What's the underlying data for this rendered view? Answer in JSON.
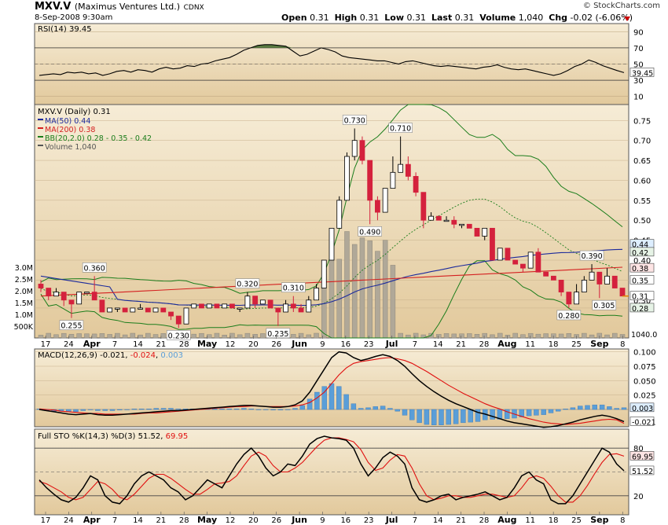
{
  "header": {
    "symbol": "MXV.V",
    "name": "(Maximus Ventures Ltd.)",
    "exchange": "CDNX",
    "datetime": "8-Sep-2008 9:30am",
    "copyright": "© StockCharts.com",
    "quote": {
      "open_label": "Open",
      "open": "0.31",
      "high_label": "High",
      "high": "0.31",
      "low_label": "Low",
      "low": "0.31",
      "last_label": "Last",
      "last": "0.31",
      "volume_label": "Volume",
      "volume": "1,040",
      "chg_label": "Chg",
      "chg": "-0.02 (-6.06%)"
    }
  },
  "colors": {
    "panel_bg": "#eddcb8",
    "up": "#ffffff",
    "down": "#d4213d",
    "ma50": "#1c2a9c",
    "ma200": "#d42020",
    "bb": "#1b7d1b",
    "volume": "#b0a898",
    "macd": "#000000",
    "signal": "#e01010",
    "hist": "#5a9ed8",
    "rsi_fill": "#5a7a40"
  },
  "chart_data": [
    {
      "type": "line",
      "title": "RSI(14) 39.45",
      "series": [
        {
          "name": "RSI(14)",
          "values": [
            36,
            37,
            38,
            37,
            40,
            39,
            40,
            38,
            39,
            36,
            38,
            41,
            42,
            40,
            43,
            42,
            40,
            44,
            46,
            44,
            45,
            48,
            47,
            50,
            51,
            54,
            56,
            58,
            62,
            67,
            70,
            73,
            74,
            74,
            73,
            72,
            66,
            60,
            62,
            66,
            70,
            68,
            65,
            60,
            58,
            57,
            56,
            55,
            54,
            54,
            52,
            50,
            53,
            54,
            52,
            50,
            48,
            47,
            48,
            47,
            46,
            45,
            44,
            46,
            47,
            49,
            46,
            44,
            43,
            44,
            42,
            40,
            38,
            36,
            38,
            42,
            47,
            50,
            55,
            52,
            48,
            45,
            42,
            39.45
          ]
        }
      ],
      "ylim": [
        0,
        100
      ],
      "y_ticks": [
        10,
        30,
        50,
        70,
        90
      ],
      "last_label": "39.45"
    },
    {
      "type": "candlestick",
      "title": "MXV.V (Daily) 0.31",
      "legend": [
        {
          "name": "MA(50) 0.44",
          "color": "#1c2a9c"
        },
        {
          "name": "MA(200) 0.38",
          "color": "#d42020"
        },
        {
          "name": "BB(20,2.0) 0.28 - 0.35 - 0.42",
          "color": "#1b7d1b"
        },
        {
          "name": "Volume 1,040",
          "color": "#555555"
        }
      ],
      "ohlc": [
        [
          0.34,
          0.35,
          0.32,
          0.33
        ],
        [
          0.33,
          0.33,
          0.3,
          0.31
        ],
        [
          0.31,
          0.33,
          0.31,
          0.32
        ],
        [
          0.32,
          0.32,
          0.285,
          0.3
        ],
        [
          0.3,
          0.3,
          0.255,
          0.29
        ],
        [
          0.29,
          0.32,
          0.29,
          0.32
        ],
        [
          0.32,
          0.32,
          0.32,
          0.32
        ],
        [
          0.32,
          0.36,
          0.3,
          0.3
        ],
        [
          0.3,
          0.3,
          0.27,
          0.27
        ],
        [
          0.27,
          0.28,
          0.27,
          0.28
        ],
        [
          0.28,
          0.28,
          0.27,
          0.28
        ],
        [
          0.28,
          0.28,
          0.27,
          0.27
        ],
        [
          0.27,
          0.28,
          0.27,
          0.28
        ],
        [
          0.28,
          0.29,
          0.28,
          0.28
        ],
        [
          0.28,
          0.28,
          0.27,
          0.27
        ],
        [
          0.27,
          0.28,
          0.27,
          0.28
        ],
        [
          0.28,
          0.28,
          0.27,
          0.27
        ],
        [
          0.27,
          0.27,
          0.25,
          0.26
        ],
        [
          0.26,
          0.26,
          0.23,
          0.24
        ],
        [
          0.24,
          0.28,
          0.24,
          0.28
        ],
        [
          0.28,
          0.29,
          0.28,
          0.29
        ],
        [
          0.29,
          0.29,
          0.28,
          0.28
        ],
        [
          0.28,
          0.29,
          0.28,
          0.29
        ],
        [
          0.29,
          0.29,
          0.28,
          0.28
        ],
        [
          0.28,
          0.29,
          0.28,
          0.29
        ],
        [
          0.29,
          0.29,
          0.28,
          0.28
        ],
        [
          0.28,
          0.28,
          0.27,
          0.28
        ],
        [
          0.28,
          0.32,
          0.28,
          0.31
        ],
        [
          0.31,
          0.31,
          0.28,
          0.29
        ],
        [
          0.29,
          0.3,
          0.29,
          0.3
        ],
        [
          0.3,
          0.3,
          0.28,
          0.28
        ],
        [
          0.28,
          0.28,
          0.235,
          0.27
        ],
        [
          0.27,
          0.3,
          0.27,
          0.29
        ],
        [
          0.29,
          0.31,
          0.27,
          0.28
        ],
        [
          0.28,
          0.29,
          0.27,
          0.27
        ],
        [
          0.27,
          0.31,
          0.27,
          0.3
        ],
        [
          0.3,
          0.34,
          0.3,
          0.33
        ],
        [
          0.33,
          0.4,
          0.33,
          0.4
        ],
        [
          0.4,
          0.48,
          0.4,
          0.48
        ],
        [
          0.48,
          0.56,
          0.48,
          0.55
        ],
        [
          0.55,
          0.67,
          0.55,
          0.66
        ],
        [
          0.66,
          0.73,
          0.65,
          0.7
        ],
        [
          0.7,
          0.71,
          0.64,
          0.65
        ],
        [
          0.65,
          0.65,
          0.49,
          0.55
        ],
        [
          0.55,
          0.56,
          0.5,
          0.52
        ],
        [
          0.52,
          0.58,
          0.52,
          0.58
        ],
        [
          0.58,
          0.66,
          0.58,
          0.62
        ],
        [
          0.62,
          0.71,
          0.62,
          0.64
        ],
        [
          0.64,
          0.66,
          0.6,
          0.61
        ],
        [
          0.61,
          0.62,
          0.56,
          0.57
        ],
        [
          0.57,
          0.57,
          0.48,
          0.5
        ],
        [
          0.5,
          0.52,
          0.5,
          0.51
        ],
        [
          0.51,
          0.51,
          0.5,
          0.5
        ],
        [
          0.5,
          0.51,
          0.5,
          0.5
        ],
        [
          0.5,
          0.51,
          0.48,
          0.49
        ],
        [
          0.49,
          0.49,
          0.48,
          0.49
        ],
        [
          0.49,
          0.49,
          0.48,
          0.48
        ],
        [
          0.48,
          0.48,
          0.46,
          0.46
        ],
        [
          0.46,
          0.48,
          0.45,
          0.48
        ],
        [
          0.48,
          0.48,
          0.4,
          0.4
        ],
        [
          0.4,
          0.43,
          0.4,
          0.43
        ],
        [
          0.43,
          0.43,
          0.4,
          0.4
        ],
        [
          0.4,
          0.4,
          0.39,
          0.39
        ],
        [
          0.39,
          0.39,
          0.37,
          0.38
        ],
        [
          0.38,
          0.42,
          0.38,
          0.42
        ],
        [
          0.42,
          0.43,
          0.37,
          0.37
        ],
        [
          0.37,
          0.37,
          0.36,
          0.36
        ],
        [
          0.36,
          0.36,
          0.35,
          0.35
        ],
        [
          0.35,
          0.35,
          0.31,
          0.32
        ],
        [
          0.32,
          0.32,
          0.28,
          0.29
        ],
        [
          0.29,
          0.34,
          0.29,
          0.32
        ],
        [
          0.32,
          0.36,
          0.32,
          0.35
        ],
        [
          0.35,
          0.39,
          0.35,
          0.37
        ],
        [
          0.37,
          0.37,
          0.305,
          0.34
        ],
        [
          0.34,
          0.38,
          0.34,
          0.36
        ],
        [
          0.36,
          0.36,
          0.33,
          0.33
        ],
        [
          0.33,
          0.33,
          0.31,
          0.31
        ]
      ],
      "annotations": [
        "0.360",
        "0.255",
        "0.230",
        "0.320",
        "0.310",
        "0.235",
        "0.730",
        "0.490",
        "0.710",
        "0.390",
        "0.305",
        "0.280"
      ],
      "y_ticks": [
        "0.75",
        "0.70",
        "0.65",
        "0.60",
        "0.55",
        "0.50",
        "0.45",
        "0.40",
        "0.35",
        "0.30",
        "0.28"
      ],
      "last_tags": [
        "0.44",
        "0.42",
        "0.38",
        "0.35",
        "0.31",
        "0.28"
      ],
      "volume_axis": [
        "3.0M",
        "2.5M",
        "2.0M",
        "1.5M",
        "1.0M",
        "500K"
      ],
      "volume_last": "1040.0"
    },
    {
      "type": "line",
      "title": "MACD(12,26,9) -0.021, -0.024, 0.003",
      "series": [
        {
          "name": "MACD(12,26,9)",
          "values": [
            0.0,
            -0.002,
            -0.004,
            -0.006,
            -0.008,
            -0.009,
            -0.008,
            -0.007,
            -0.009,
            -0.01,
            -0.01,
            -0.009,
            -0.008,
            -0.007,
            -0.006,
            -0.005,
            -0.004,
            -0.003,
            -0.002,
            -0.002,
            -0.001,
            0.0,
            0.001,
            0.002,
            0.003,
            0.004,
            0.005,
            0.006,
            0.007,
            0.007,
            0.006,
            0.005,
            0.004,
            0.004,
            0.005,
            0.008,
            0.015,
            0.03,
            0.05,
            0.07,
            0.09,
            0.1,
            0.098,
            0.09,
            0.085,
            0.088,
            0.092,
            0.095,
            0.092,
            0.085,
            0.075,
            0.062,
            0.05,
            0.04,
            0.031,
            0.023,
            0.016,
            0.01,
            0.005,
            0.0,
            -0.005,
            -0.008,
            -0.012,
            -0.016,
            -0.02,
            -0.023,
            -0.025,
            -0.027,
            -0.029,
            -0.031,
            -0.03,
            -0.028,
            -0.025,
            -0.022,
            -0.018,
            -0.015,
            -0.012,
            -0.01,
            -0.012,
            -0.016,
            -0.021
          ]
        },
        {
          "name": "Signal",
          "values": [
            0.001,
            0.0,
            -0.001,
            -0.003,
            -0.004,
            -0.005,
            -0.006,
            -0.007,
            -0.007,
            -0.008,
            -0.008,
            -0.008,
            -0.008,
            -0.008,
            -0.007,
            -0.006,
            -0.006,
            -0.005,
            -0.004,
            -0.003,
            -0.002,
            -0.001,
            0.0,
            0.001,
            0.002,
            0.003,
            0.004,
            0.005,
            0.005,
            0.006,
            0.006,
            0.005,
            0.005,
            0.005,
            0.005,
            0.006,
            0.008,
            0.012,
            0.02,
            0.03,
            0.045,
            0.06,
            0.072,
            0.08,
            0.083,
            0.085,
            0.087,
            0.089,
            0.09,
            0.088,
            0.085,
            0.08,
            0.073,
            0.066,
            0.058,
            0.05,
            0.042,
            0.035,
            0.028,
            0.022,
            0.016,
            0.01,
            0.005,
            0.001,
            -0.004,
            -0.008,
            -0.012,
            -0.016,
            -0.019,
            -0.022,
            -0.024,
            -0.025,
            -0.026,
            -0.025,
            -0.024,
            -0.022,
            -0.02,
            -0.018,
            -0.017,
            -0.018,
            -0.024
          ]
        },
        {
          "name": "Histogram",
          "values": [
            0.001,
            -0.002,
            -0.003,
            -0.003,
            -0.004,
            -0.004,
            -0.002,
            0.0,
            -0.002,
            -0.002,
            -0.002,
            -0.001,
            0.0,
            0.001,
            0.001,
            0.001,
            0.002,
            0.002,
            0.002,
            0.001,
            0.001,
            0.001,
            0.001,
            0.001,
            0.001,
            0.001,
            0.001,
            0.001,
            0.002,
            0.001,
            0.0,
            0.0,
            -0.001,
            -0.001,
            0.0,
            0.002,
            0.007,
            0.018,
            0.03,
            0.04,
            0.045,
            0.04,
            0.026,
            0.01,
            0.002,
            0.003,
            0.005,
            0.006,
            0.002,
            -0.003,
            -0.01,
            -0.018,
            -0.023,
            -0.026,
            -0.027,
            -0.027,
            -0.026,
            -0.025,
            -0.023,
            -0.022,
            -0.021,
            -0.018,
            -0.017,
            -0.017,
            -0.016,
            -0.015,
            -0.013,
            -0.011,
            -0.01,
            -0.009,
            -0.006,
            -0.003,
            0.001,
            0.003,
            0.006,
            0.007,
            0.008,
            0.008,
            0.005,
            0.002,
            0.003
          ]
        }
      ],
      "ylim": [
        -0.03,
        0.105
      ],
      "y_ticks": [
        "0.100",
        "0.075",
        "0.050",
        "0.025"
      ],
      "last_tags": [
        "0.003",
        "-0.021"
      ]
    },
    {
      "type": "line",
      "title": "Full STO %K(14,3) %D(3) 51.52, 69.95",
      "series": [
        {
          "name": "%K(14,3)",
          "values": [
            40,
            30,
            22,
            15,
            12,
            18,
            30,
            45,
            40,
            20,
            12,
            10,
            20,
            35,
            45,
            50,
            45,
            40,
            30,
            25,
            15,
            20,
            30,
            40,
            35,
            30,
            45,
            60,
            72,
            80,
            70,
            55,
            45,
            50,
            60,
            58,
            70,
            85,
            92,
            95,
            93,
            92,
            90,
            80,
            60,
            45,
            55,
            68,
            75,
            70,
            60,
            30,
            15,
            12,
            15,
            20,
            22,
            15,
            18,
            20,
            22,
            25,
            20,
            15,
            18,
            30,
            45,
            50,
            40,
            35,
            15,
            10,
            10,
            20,
            35,
            50,
            65,
            80,
            75,
            60,
            51.52
          ]
        },
        {
          "name": "%D(3)",
          "values": [
            38,
            35,
            30,
            25,
            18,
            15,
            18,
            28,
            38,
            35,
            28,
            18,
            15,
            22,
            32,
            42,
            47,
            47,
            42,
            35,
            28,
            22,
            22,
            28,
            35,
            36,
            38,
            45,
            58,
            70,
            75,
            70,
            58,
            50,
            50,
            55,
            62,
            72,
            82,
            90,
            93,
            93,
            91,
            88,
            78,
            62,
            52,
            55,
            65,
            72,
            70,
            55,
            35,
            20,
            15,
            17,
            20,
            20,
            18,
            18,
            20,
            22,
            22,
            20,
            18,
            20,
            30,
            42,
            45,
            42,
            32,
            20,
            12,
            12,
            20,
            33,
            48,
            62,
            72,
            73,
            69.95
          ]
        }
      ],
      "ylim": [
        0,
        100
      ],
      "y_ticks": [
        "80",
        "20"
      ],
      "last_tags": [
        "69.95",
        "51.52"
      ]
    }
  ],
  "x_axis": {
    "labels": [
      "17",
      "24",
      "Apr",
      "7",
      "14",
      "21",
      "28",
      "May",
      "12",
      "20",
      "26",
      "Jun",
      "9",
      "16",
      "23",
      "Jul",
      "7",
      "14",
      "21",
      "28",
      "Aug",
      "11",
      "18",
      "25",
      "Sep",
      "8"
    ],
    "bold": [
      "Apr",
      "May",
      "Jun",
      "Jul",
      "Aug",
      "Sep"
    ]
  }
}
